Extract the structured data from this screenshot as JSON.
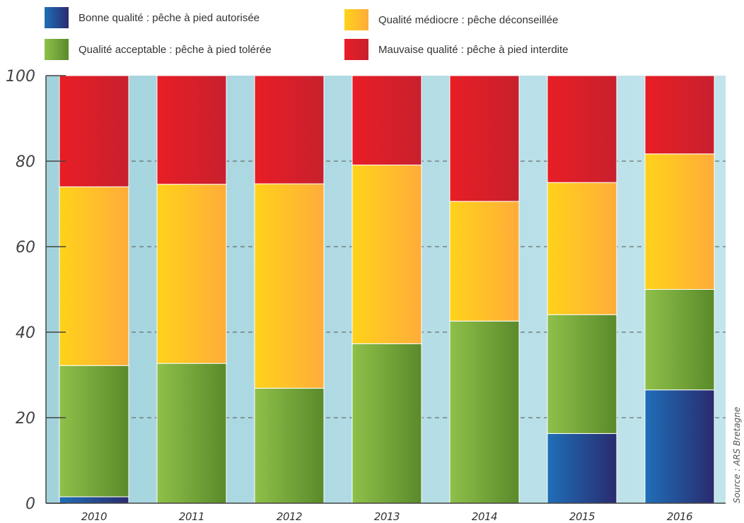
{
  "chart_data": {
    "type": "bar",
    "stacked": true,
    "categories": [
      "2010",
      "2011",
      "2012",
      "2013",
      "2014",
      "2015",
      "2016"
    ],
    "series": [
      {
        "name": "Bonne qualité : pêche à pied autorisée",
        "color_start": "#1e6fb8",
        "color_end": "#2a2a6e",
        "values": [
          1.5,
          0,
          0,
          0,
          0,
          16.3,
          26.5
        ]
      },
      {
        "name": "Qualité acceptable : pêche à pied tolérée",
        "color_start": "#8fc04a",
        "color_end": "#5a8a2a",
        "values": [
          30.7,
          32.7,
          26.9,
          37.3,
          42.6,
          27.8,
          23.5
        ]
      },
      {
        "name": "Qualité médiocre : pêche déconseillée",
        "color_start": "#ffd21a",
        "color_end": "#ffac3a",
        "values": [
          41.8,
          41.9,
          47.8,
          41.8,
          28.0,
          30.9,
          31.7
        ]
      },
      {
        "name": "Mauvaise qualité : pêche à pied interdite",
        "color_start": "#e81e25",
        "color_end": "#c8202e",
        "values": [
          26.0,
          25.4,
          25.3,
          20.9,
          29.4,
          25.0,
          18.3
        ]
      }
    ],
    "y_ticks": [
      "0",
      "20",
      "40",
      "60",
      "80",
      "100"
    ],
    "ylim": [
      0,
      100
    ],
    "grid": true,
    "legend_position": "top",
    "source": "Source : ARS Bretagne"
  }
}
